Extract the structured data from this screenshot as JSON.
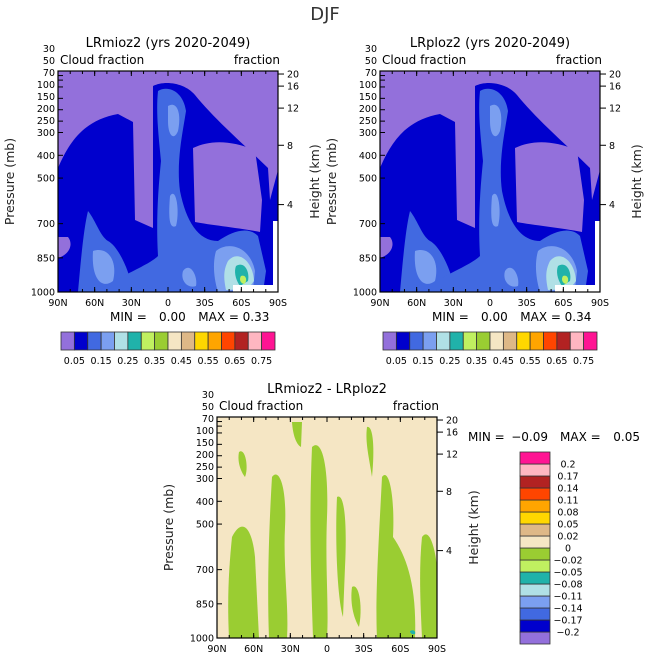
{
  "title": "DJF",
  "colors": [
    "#9370DB",
    "#0000CD",
    "#4169E1",
    "#7B9FF0",
    "#B0E0E6",
    "#20B2AA",
    "#C0F060",
    "#9ACD32",
    "#F5E6C4",
    "#DEB887",
    "#FFD700",
    "#FFA500",
    "#FF4500",
    "#B22222",
    "#FFB6C1",
    "#FF1493"
  ],
  "chart_data": [
    {
      "type": "contour",
      "title": "LRmioz2 (yrs 2020-2049)",
      "left_subtitle": "Cloud fraction",
      "right_subtitle": "fraction",
      "ylabel": "Pressure (mb)",
      "ylabel_right": "Height (km)",
      "ylim": [
        1000,
        30
      ],
      "xlim": [
        "90N",
        "90S"
      ],
      "x_ticks": [
        "90N",
        "60N",
        "30N",
        "0",
        "30S",
        "60S",
        "90S"
      ],
      "y_ticks": [
        "30",
        "50",
        "70",
        "100",
        "150",
        "200",
        "250",
        "300",
        "400",
        "500",
        "700",
        "850",
        "1000"
      ],
      "y_ticks_right": [
        "20",
        "16",
        "12",
        "8",
        "4"
      ],
      "min_label": "MIN =",
      "min": "0.00",
      "max_label": "MAX =",
      "max": "0.33",
      "levels": [
        "0.05",
        "0.1",
        "0.15",
        "0.2",
        "0.25",
        "0.3",
        "0.35",
        "0.4",
        "0.45",
        "0.5",
        "0.55",
        "0.6",
        "0.65",
        "0.7",
        "0.75"
      ],
      "level_labels": [
        "0.05",
        "0.15",
        "0.25",
        "0.35",
        "0.45",
        "0.55",
        "0.65",
        "0.75"
      ]
    },
    {
      "type": "contour",
      "title": "LRploz2 (yrs 2020-2049)",
      "left_subtitle": "Cloud fraction",
      "right_subtitle": "fraction",
      "ylabel": "Pressure (mb)",
      "ylabel_right": "Height (km)",
      "ylim": [
        1000,
        30
      ],
      "xlim": [
        "90N",
        "90S"
      ],
      "x_ticks": [
        "90N",
        "60N",
        "30N",
        "0",
        "30S",
        "60S",
        "90S"
      ],
      "y_ticks": [
        "30",
        "50",
        "70",
        "100",
        "150",
        "200",
        "250",
        "300",
        "400",
        "500",
        "700",
        "850",
        "1000"
      ],
      "y_ticks_right": [
        "20",
        "16",
        "12",
        "8",
        "4"
      ],
      "min_label": "MIN =",
      "min": "0.00",
      "max_label": "MAX =",
      "max": "0.34",
      "levels": [
        "0.05",
        "0.1",
        "0.15",
        "0.2",
        "0.25",
        "0.3",
        "0.35",
        "0.4",
        "0.45",
        "0.5",
        "0.55",
        "0.6",
        "0.65",
        "0.7",
        "0.75"
      ],
      "level_labels": [
        "0.05",
        "0.15",
        "0.25",
        "0.35",
        "0.45",
        "0.55",
        "0.65",
        "0.75"
      ]
    },
    {
      "type": "contour",
      "title": "LRmioz2 - LRploz2",
      "left_subtitle": "Cloud fraction",
      "right_subtitle": "fraction",
      "ylabel": "Pressure (mb)",
      "ylabel_right": "Height (km)",
      "ylim": [
        1000,
        30
      ],
      "xlim": [
        "90N",
        "90S"
      ],
      "x_ticks": [
        "90N",
        "60N",
        "30N",
        "0",
        "30S",
        "60S",
        "90S"
      ],
      "y_ticks": [
        "30",
        "50",
        "70",
        "100",
        "150",
        "200",
        "250",
        "300",
        "400",
        "500",
        "700",
        "850",
        "1000"
      ],
      "y_ticks_right": [
        "20",
        "16",
        "12",
        "8",
        "4"
      ],
      "min_label": "MIN =",
      "min": "-0.09",
      "max_label": "MAX =",
      "max": "0.05",
      "levels": [
        "-0.2",
        "-0.17",
        "-0.14",
        "-0.11",
        "-0.08",
        "-0.05",
        "-0.02",
        "0",
        "0.02",
        "0.05",
        "0.08",
        "0.11",
        "0.14",
        "0.17",
        "0.2"
      ],
      "level_labels": [
        "-0.2",
        "-0.17",
        "-0.14",
        "-0.11",
        "-0.08",
        "-0.05",
        "-0.02",
        "0",
        "0.02",
        "0.05",
        "0.08",
        "0.11",
        "0.14",
        "0.17",
        "0.2"
      ]
    }
  ]
}
